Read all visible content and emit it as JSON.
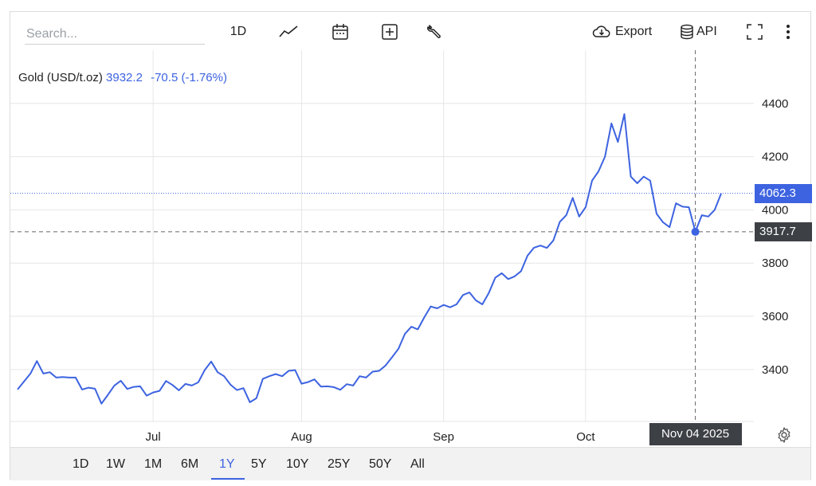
{
  "toolbar": {
    "search_placeholder": "Search...",
    "interval_label": "1D",
    "export_label": "Export",
    "api_label": "API",
    "icons": [
      "line-chart-icon",
      "calendar-icon",
      "plus-box-icon",
      "wrench-icon",
      "cloud-download-icon",
      "database-icon",
      "fullscreen-icon",
      "more-vertical-icon"
    ]
  },
  "legend": {
    "name": "Gold (USD/t.oz)",
    "price": "3932.2",
    "change": "-70.5 (-1.76%)"
  },
  "last_price_tag": "4062.3",
  "crosshair": {
    "price_label": "3917.7",
    "date_label": "Nov 04 2025"
  },
  "colors": {
    "line": "#3d63e0",
    "last_tag_bg": "#3d63e0",
    "crosshair_tag_bg": "#3d4045",
    "grid": "#e6e6e6"
  },
  "range_tabs": [
    "1D",
    "1W",
    "1M",
    "6M",
    "1Y",
    "5Y",
    "10Y",
    "25Y",
    "50Y",
    "All"
  ],
  "active_range": "1Y",
  "chart_data": {
    "type": "line",
    "series": [
      {
        "name": "Gold (USD/t.oz)",
        "values": [
          3325,
          3355,
          3385,
          3432,
          3385,
          3390,
          3370,
          3372,
          3370,
          3370,
          3325,
          3332,
          3328,
          3272,
          3305,
          3340,
          3358,
          3327,
          3335,
          3337,
          3302,
          3314,
          3320,
          3357,
          3342,
          3322,
          3346,
          3340,
          3352,
          3398,
          3430,
          3390,
          3375,
          3343,
          3323,
          3330,
          3277,
          3292,
          3365,
          3375,
          3383,
          3375,
          3395,
          3398,
          3347,
          3353,
          3363,
          3336,
          3337,
          3334,
          3324,
          3345,
          3340,
          3375,
          3370,
          3392,
          3395,
          3415,
          3446,
          3478,
          3534,
          3561,
          3551,
          3596,
          3637,
          3630,
          3643,
          3634,
          3645,
          3680,
          3690,
          3660,
          3645,
          3688,
          3745,
          3762,
          3740,
          3750,
          3770,
          3828,
          3858,
          3866,
          3857,
          3885,
          3955,
          3980,
          4045,
          3975,
          4010,
          4110,
          4145,
          4200,
          4325,
          4255,
          4360,
          4125,
          4100,
          4125,
          4110,
          3985,
          3953,
          3935,
          4025,
          4012,
          4010,
          3918,
          3980,
          3975,
          4000,
          4062
        ]
      }
    ],
    "x_ticks": [
      "Jul",
      "Aug",
      "Sep",
      "Oct"
    ],
    "y_ticks": [
      3400,
      3600,
      3800,
      4000,
      4200,
      4400
    ],
    "ylim": [
      3205,
      4600
    ],
    "last_value": 4062.3,
    "crosshair_value": 3917.7,
    "crosshair_date": "Nov 04 2025",
    "grid": true
  }
}
